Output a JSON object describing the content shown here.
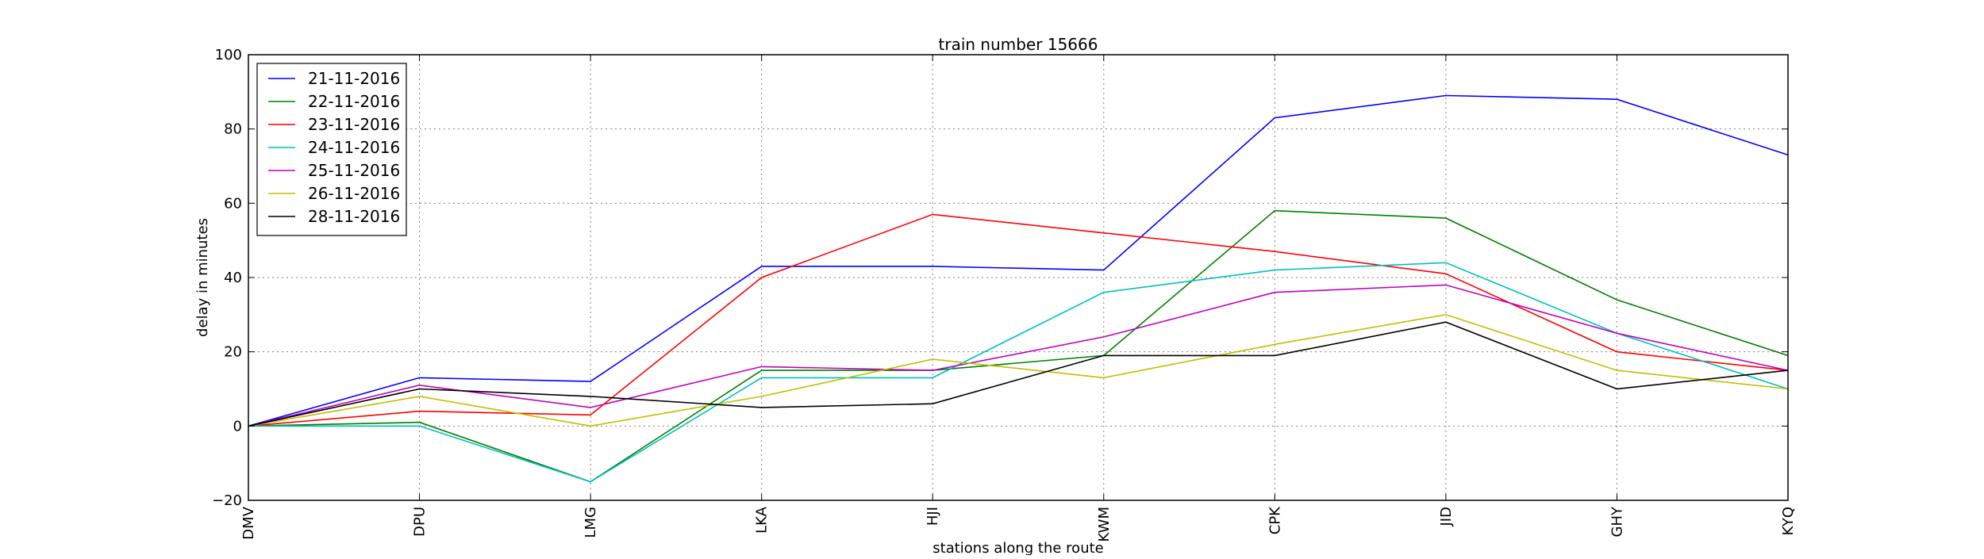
{
  "chart_data": {
    "type": "line",
    "title": "train number 15666",
    "xlabel": "stations along the route",
    "ylabel": "delay in minutes",
    "categories": [
      "DMV",
      "DPU",
      "LMG",
      "LKA",
      "HJI",
      "KWM",
      "CPK",
      "JID",
      "GHY",
      "KYQ"
    ],
    "ylim": [
      -20,
      100
    ],
    "yticks": [
      -20,
      0,
      20,
      40,
      60,
      80,
      100
    ],
    "grid": true,
    "legend_position": "top-left",
    "series": [
      {
        "name": "21-11-2016",
        "color": "#0000ff",
        "values": [
          0,
          13,
          12,
          43,
          43,
          42,
          83,
          89,
          88,
          73
        ]
      },
      {
        "name": "22-11-2016",
        "color": "#008000",
        "values": [
          0,
          1,
          -15,
          15,
          15,
          19,
          58,
          56,
          34,
          19
        ]
      },
      {
        "name": "23-11-2016",
        "color": "#ff0000",
        "values": [
          0,
          4,
          3,
          40,
          57,
          52,
          47,
          41,
          20,
          15
        ]
      },
      {
        "name": "24-11-2016",
        "color": "#00bfbf",
        "values": [
          0,
          0,
          -15,
          13,
          13,
          36,
          42,
          44,
          25,
          10
        ]
      },
      {
        "name": "25-11-2016",
        "color": "#bf00bf",
        "values": [
          0,
          11,
          5,
          16,
          15,
          24,
          36,
          38,
          25,
          15
        ]
      },
      {
        "name": "26-11-2016",
        "color": "#bfbf00",
        "values": [
          0,
          8,
          0,
          8,
          18,
          13,
          22,
          30,
          15,
          10
        ]
      },
      {
        "name": "28-11-2016",
        "color": "#000000",
        "values": [
          0,
          10,
          8,
          5,
          6,
          19,
          19,
          28,
          10,
          15
        ]
      }
    ]
  }
}
